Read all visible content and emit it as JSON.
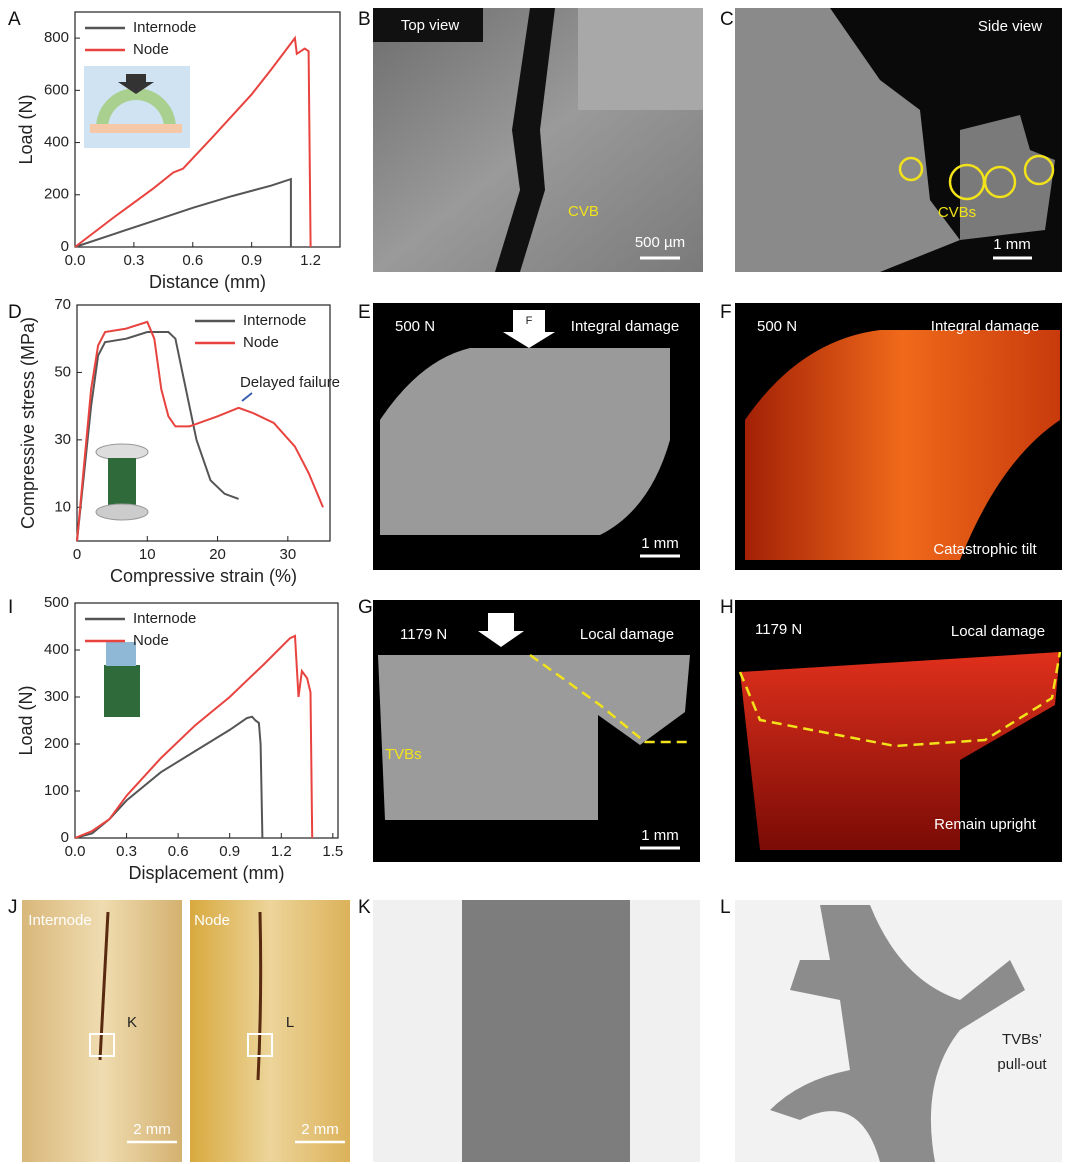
{
  "chart_data": [
    {
      "type": "line",
      "xlabel": "Distance (mm)",
      "ylabel": "Load (N)",
      "legend": "upper left",
      "xlim": [
        0,
        1.35
      ],
      "ylim": [
        0,
        900
      ],
      "xticks": [
        {
          "value": 0,
          "label": "0.0"
        },
        0.3,
        0.6,
        0.9,
        1.2
      ],
      "yticks": [
        0,
        200,
        400,
        600,
        800
      ],
      "series": [
        {
          "name": "Internode",
          "color": "#555555",
          "x": [
            0,
            0.2,
            0.4,
            0.6,
            0.8,
            1.0,
            1.1,
            1.1
          ],
          "values": [
            0,
            50,
            100,
            150,
            195,
            235,
            260,
            0
          ]
        },
        {
          "name": "Node",
          "color": "#e8433f",
          "x": [
            0,
            0.2,
            0.4,
            0.5,
            0.55,
            0.7,
            0.9,
            1.0,
            1.12,
            1.13,
            1.17,
            1.19,
            1.2
          ],
          "values": [
            0,
            115,
            225,
            285,
            300,
            420,
            585,
            680,
            800,
            740,
            760,
            750,
            0
          ]
        }
      ]
    },
    {
      "type": "line",
      "xlabel": "Compressive strain (%)",
      "ylabel": "Compressive stress (MPa)",
      "legend": "upper right",
      "annotation": "Delayed failure",
      "xlim": [
        0,
        36
      ],
      "ylim": [
        0,
        70
      ],
      "xticks": [
        0,
        10,
        20,
        30
      ],
      "yticks": [
        10,
        30,
        50,
        70
      ],
      "series": [
        {
          "name": "Internode",
          "color": "#555555",
          "x": [
            0,
            2,
            3,
            4,
            7,
            10,
            13,
            14,
            15,
            17,
            19,
            21,
            23
          ],
          "values": [
            0,
            40,
            55,
            59,
            60,
            62,
            62,
            60,
            50,
            30,
            18,
            14,
            12.5
          ]
        },
        {
          "name": "Node",
          "color": "#e8433f",
          "x": [
            0,
            2,
            3,
            4,
            7,
            10,
            11,
            12,
            13,
            14,
            16,
            20,
            23,
            25,
            28,
            31,
            33,
            35
          ],
          "values": [
            0,
            45,
            58,
            62,
            63,
            65,
            60,
            45,
            37,
            34,
            34,
            37,
            39.5,
            38,
            35,
            28,
            20,
            10
          ]
        }
      ]
    },
    {
      "type": "line",
      "xlabel": "Displacement (mm)",
      "ylabel": "Load (N)",
      "legend": "upper left",
      "xlim": [
        0,
        1.53
      ],
      "ylim": [
        0,
        500
      ],
      "xticks": [
        {
          "value": 0,
          "label": "0.0"
        },
        0.3,
        0.6,
        0.9,
        1.2,
        1.5
      ],
      "yticks": [
        0,
        100,
        200,
        300,
        400,
        500
      ],
      "series": [
        {
          "name": "Internode",
          "color": "#555555",
          "x": [
            0,
            0.1,
            0.2,
            0.3,
            0.5,
            0.7,
            0.9,
            1.0,
            1.03,
            1.05,
            1.07,
            1.08,
            1.09
          ],
          "values": [
            0,
            10,
            40,
            80,
            140,
            185,
            230,
            255,
            258,
            250,
            245,
            200,
            0
          ]
        },
        {
          "name": "Node",
          "color": "#e8433f",
          "x": [
            0,
            0.1,
            0.2,
            0.3,
            0.5,
            0.7,
            0.9,
            1.1,
            1.25,
            1.28,
            1.3,
            1.32,
            1.35,
            1.37,
            1.38
          ],
          "values": [
            0,
            15,
            40,
            90,
            170,
            240,
            300,
            370,
            425,
            430,
            300,
            355,
            340,
            310,
            0
          ]
        }
      ]
    }
  ],
  "panel_labels": [
    "A",
    "B",
    "C",
    "D",
    "E",
    "F",
    "I",
    "G",
    "H",
    "J",
    "K",
    "L"
  ],
  "images": {
    "B": {
      "view": "Top view",
      "marker": "CVB",
      "scale": "500 µm"
    },
    "C": {
      "view": "Side view",
      "marker": "CVBs",
      "scale": "1 mm"
    },
    "E": {
      "load": "500 N",
      "force": "F",
      "damage": "Integral damage",
      "scale": "1 mm"
    },
    "F": {
      "load": "500 N",
      "damage": "Integral damage",
      "note": "Catastrophic tilt"
    },
    "G": {
      "load": "1179 N",
      "damage": "Local damage",
      "marker": "TVBs",
      "scale": "1 mm"
    },
    "H": {
      "load": "1179 N",
      "damage": "Local damage",
      "note": "Remain upright"
    },
    "J": {
      "left": "Internode",
      "right": "Node",
      "box_left": "K",
      "box_right": "L",
      "scale_left": "2 mm",
      "scale_right": "2 mm"
    },
    "L": {
      "note": [
        "TVBs’",
        "pull-out"
      ]
    }
  }
}
